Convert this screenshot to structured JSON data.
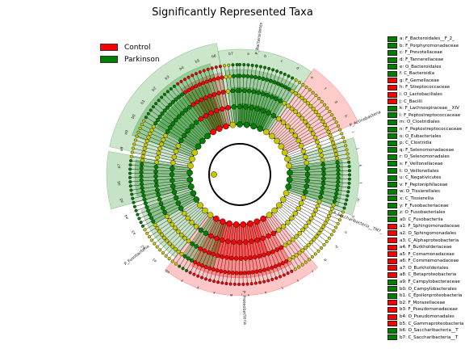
{
  "title": "Significantly Represented Taxa",
  "legend": [
    {
      "label": "Control",
      "color": "#ff0000"
    },
    {
      "label": "Parkinson",
      "color": "#008000"
    }
  ],
  "colors": {
    "control": "#ff0000",
    "parkinson": "#008000",
    "node_neutral": "#c8c800"
  },
  "taxa": [
    {
      "text": "a: F_Bacteroidales__F_2_",
      "group": "parkinson"
    },
    {
      "text": "b: F_Porphyromonadaceae",
      "group": "parkinson"
    },
    {
      "text": "c: F_Prevotellaceae",
      "group": "parkinson"
    },
    {
      "text": "d: F_Tannerellaceae",
      "group": "parkinson"
    },
    {
      "text": "e: O_Bacteroidales",
      "group": "parkinson"
    },
    {
      "text": "f: C_Bacteroidia",
      "group": "parkinson"
    },
    {
      "text": "g: F_Gemellaceae",
      "group": "control"
    },
    {
      "text": "h: F_Streptococcaceae",
      "group": "control"
    },
    {
      "text": "i: O_Lactobacillales",
      "group": "control"
    },
    {
      "text": "j: C_Bacilli",
      "group": "control"
    },
    {
      "text": "k: F_Lachnospiraceae__XIV",
      "group": "parkinson"
    },
    {
      "text": "l: F_Peptostreptococcaceae",
      "group": "parkinson"
    },
    {
      "text": "m: O_Clostridiales",
      "group": "parkinson"
    },
    {
      "text": "n: F_Peptostreptococcaceae",
      "group": "parkinson"
    },
    {
      "text": "o: O_Eubacteriales",
      "group": "parkinson"
    },
    {
      "text": "p: C_Clostridia",
      "group": "parkinson"
    },
    {
      "text": "q: F_Selenomonadaceae",
      "group": "parkinson"
    },
    {
      "text": "r: O_Selenomonadales",
      "group": "parkinson"
    },
    {
      "text": "s: F_Veillonellaceae",
      "group": "parkinson"
    },
    {
      "text": "t: O_Veillonellales",
      "group": "parkinson"
    },
    {
      "text": "u: C_Negativicutes",
      "group": "parkinson"
    },
    {
      "text": "v: F_Peptoniphilaceae",
      "group": "parkinson"
    },
    {
      "text": "w: O_Tissierellales",
      "group": "parkinson"
    },
    {
      "text": "x: C_Tissierellia",
      "group": "parkinson"
    },
    {
      "text": "y: F_Fusobacteriaceae",
      "group": "parkinson"
    },
    {
      "text": "z: O_Fusobacteriales",
      "group": "parkinson"
    },
    {
      "text": "a0: C_Fusobacteriia",
      "group": "parkinson"
    },
    {
      "text": "a1: F_Sphingomonadaceae",
      "group": "control"
    },
    {
      "text": "a2: O_Sphingomonadales",
      "group": "control"
    },
    {
      "text": "a3: C_Alphaproteobacteria",
      "group": "control"
    },
    {
      "text": "a4: F_Burkholderiaceae",
      "group": "control"
    },
    {
      "text": "a5: F_Comamonadaceae",
      "group": "control"
    },
    {
      "text": "a6: F_Commamonadaceae",
      "group": "control"
    },
    {
      "text": "a7: O_Burkholderiales",
      "group": "control"
    },
    {
      "text": "a8: C_Betaproteobacteria",
      "group": "control"
    },
    {
      "text": "a9: F_Campylobacteraceae",
      "group": "parkinson"
    },
    {
      "text": "b0: O_Campylobacterales",
      "group": "parkinson"
    },
    {
      "text": "b1: C_Epsilonproteobacteria",
      "group": "parkinson"
    },
    {
      "text": "b2: F_Moraxellaceae",
      "group": "control"
    },
    {
      "text": "b3: F_Pseudomonadaceae",
      "group": "control"
    },
    {
      "text": "b4: O_Pseudomonadales",
      "group": "control"
    },
    {
      "text": "b5: C_Gammaproteobacteria",
      "group": "control"
    },
    {
      "text": "b6: O_Saccharibacteria__T",
      "group": "parkinson"
    },
    {
      "text": "b7: C_Saccharibacteria__T",
      "group": "parkinson"
    }
  ],
  "phyla": [
    {
      "name": "P_Bacteroidetes",
      "group": "parkinson"
    },
    {
      "name": "P_Actinobacteria",
      "group": "control"
    },
    {
      "name": "P_Saccharibacteria__TM7_",
      "group": "parkinson"
    },
    {
      "name": "P_Proteobacteria",
      "group": "control"
    },
    {
      "name": "P_Fusobacteria",
      "group": "parkinson"
    }
  ],
  "clade_letters": [
    "a",
    "b",
    "c",
    "d",
    "e",
    "f",
    "g",
    "h",
    "i",
    "j",
    "k",
    "l",
    "m",
    "n",
    "o",
    "p",
    "q",
    "r",
    "s",
    "t",
    "u",
    "v",
    "w",
    "x",
    "y",
    "z",
    "a0",
    "a1",
    "a2",
    "a3",
    "a4",
    "a5",
    "a6",
    "a7",
    "a8",
    "a9",
    "b0",
    "b1",
    "b2",
    "b3",
    "b4",
    "b5",
    "b6",
    "b7"
  ]
}
